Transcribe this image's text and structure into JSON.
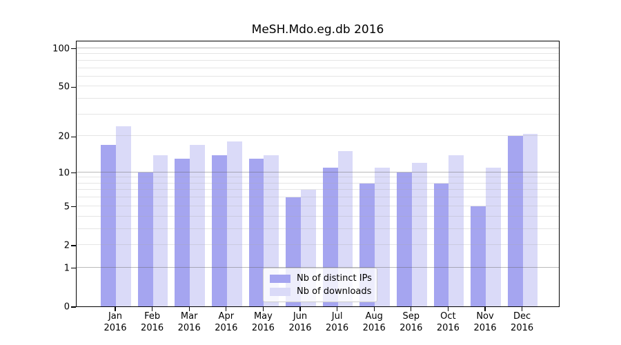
{
  "title": "MeSH.Mdo.eg.db 2016",
  "chart_data": {
    "type": "bar",
    "title": "MeSH.Mdo.eg.db 2016",
    "categories": [
      "Jan",
      "Feb",
      "Mar",
      "Apr",
      "May",
      "Jun",
      "Jul",
      "Aug",
      "Sep",
      "Oct",
      "Nov",
      "Dec"
    ],
    "category_year": "2016",
    "series": [
      {
        "name": "Nb of distinct IPs",
        "color": "#a5a5f0",
        "values": [
          17,
          10,
          13,
          14,
          13,
          6,
          11,
          8,
          10,
          8,
          5,
          20
        ]
      },
      {
        "name": "Nb of downloads",
        "color": "#dadaf8",
        "values": [
          24,
          14,
          17,
          18,
          14,
          7,
          15,
          11,
          12,
          14,
          11,
          21
        ]
      }
    ],
    "xlabel": "",
    "ylabel": "",
    "yscale": "log10(1+x)",
    "ylim": [
      0,
      116
    ],
    "yticks": [
      0,
      1,
      2,
      5,
      10,
      20,
      50,
      100
    ],
    "grid": "horizontal, major and minor log lines",
    "legend_position": "inside lower-center"
  },
  "legend": {
    "items": [
      {
        "label": "Nb of distinct IPs"
      },
      {
        "label": "Nb of downloads"
      }
    ]
  },
  "colors": {
    "bar_distinct_ips": "#a5a5f0",
    "bar_downloads": "#dadaf8",
    "grid_major": "#b4b4b4",
    "grid_minor": "#e4e4e4",
    "axis": "#000000",
    "background": "#ffffff"
  }
}
